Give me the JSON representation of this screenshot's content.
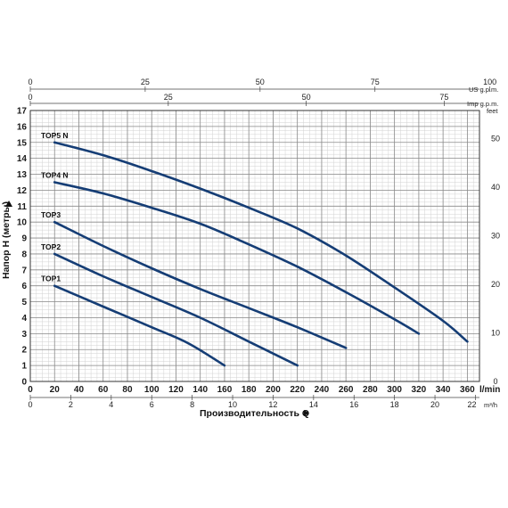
{
  "chart_data": {
    "type": "line",
    "xlabel": "Производительность Q",
    "ylabel": "Напор H (метры)",
    "x_unit": "l/min",
    "xlim": [
      0,
      370
    ],
    "ylim": [
      0,
      17
    ],
    "x_ticks": [
      0,
      20,
      40,
      60,
      80,
      100,
      120,
      140,
      160,
      180,
      200,
      220,
      240,
      260,
      280,
      300,
      320,
      340,
      360
    ],
    "y_ticks": [
      0,
      1,
      2,
      3,
      4,
      5,
      6,
      7,
      8,
      9,
      10,
      11,
      12,
      13,
      14,
      15,
      16,
      17
    ],
    "grid": true,
    "secondary_axes": {
      "m3h": {
        "unit": "m³/h",
        "ticks": [
          0,
          2,
          4,
          6,
          8,
          10,
          12,
          14,
          16,
          18,
          20,
          22
        ]
      },
      "us_gpm": {
        "unit": "US g.p.m.",
        "ticks": [
          0,
          25,
          50,
          75,
          100
        ]
      },
      "imp_gpm": {
        "unit": "Imp g.p.m.",
        "ticks": [
          0,
          25,
          50,
          75
        ]
      },
      "feet": {
        "unit": "feet",
        "ticks": [
          0,
          10,
          20,
          30,
          40,
          50
        ]
      }
    },
    "series": [
      {
        "name": "TOP5 N",
        "color": "#153d75",
        "x": [
          20,
          60,
          100,
          140,
          180,
          220,
          260,
          300,
          340,
          360
        ],
        "y": [
          15,
          14.2,
          13.2,
          12.1,
          10.9,
          9.6,
          7.9,
          5.9,
          3.8,
          2.5
        ]
      },
      {
        "name": "TOP4 N",
        "color": "#153d75",
        "x": [
          20,
          60,
          100,
          140,
          180,
          220,
          260,
          300,
          320
        ],
        "y": [
          12.5,
          11.8,
          10.9,
          9.9,
          8.6,
          7.2,
          5.6,
          3.9,
          3.0
        ]
      },
      {
        "name": "TOP3",
        "color": "#153d75",
        "x": [
          20,
          60,
          100,
          140,
          180,
          220,
          260
        ],
        "y": [
          10,
          8.5,
          7.1,
          5.8,
          4.6,
          3.4,
          2.1
        ]
      },
      {
        "name": "TOP2",
        "color": "#153d75",
        "x": [
          20,
          60,
          100,
          140,
          180,
          220
        ],
        "y": [
          8,
          6.6,
          5.3,
          4.0,
          2.5,
          1.0
        ]
      },
      {
        "name": "TOP1",
        "color": "#153d75",
        "x": [
          20,
          60,
          100,
          130,
          160
        ],
        "y": [
          6,
          4.7,
          3.4,
          2.4,
          1.0
        ]
      }
    ]
  }
}
